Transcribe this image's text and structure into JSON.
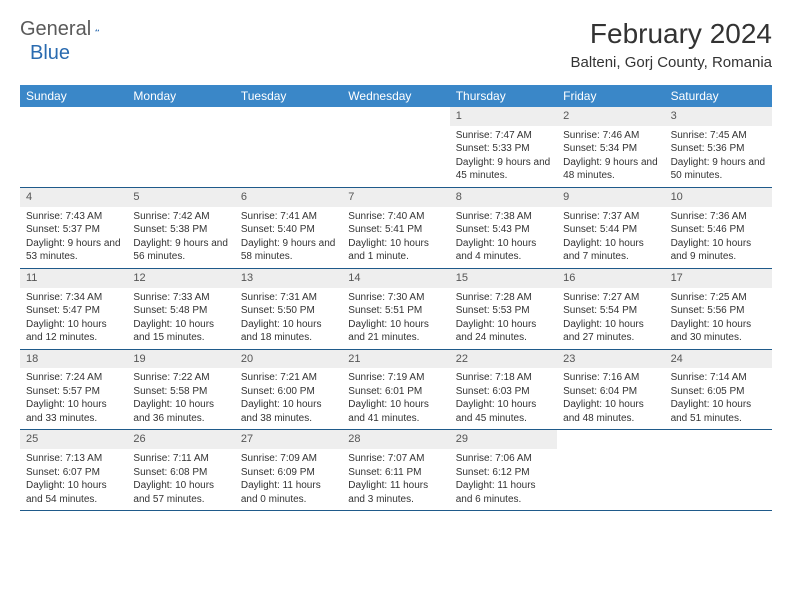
{
  "brand": {
    "name1": "General",
    "name2": "Blue"
  },
  "title": "February 2024",
  "location": "Balteni, Gorj County, Romania",
  "colors": {
    "header_bg": "#3a87c8",
    "header_text": "#ffffff",
    "row_border": "#1f5a8a",
    "daynum_bg": "#eeeeee",
    "body_text": "#333333",
    "brand_blue": "#2a6bb0"
  },
  "day_labels": [
    "Sunday",
    "Monday",
    "Tuesday",
    "Wednesday",
    "Thursday",
    "Friday",
    "Saturday"
  ],
  "weeks": [
    [
      {
        "empty": true
      },
      {
        "empty": true
      },
      {
        "empty": true
      },
      {
        "empty": true
      },
      {
        "num": "1",
        "sunrise": "7:47 AM",
        "sunset": "5:33 PM",
        "daylight": "9 hours and 45 minutes."
      },
      {
        "num": "2",
        "sunrise": "7:46 AM",
        "sunset": "5:34 PM",
        "daylight": "9 hours and 48 minutes."
      },
      {
        "num": "3",
        "sunrise": "7:45 AM",
        "sunset": "5:36 PM",
        "daylight": "9 hours and 50 minutes."
      }
    ],
    [
      {
        "num": "4",
        "sunrise": "7:43 AM",
        "sunset": "5:37 PM",
        "daylight": "9 hours and 53 minutes."
      },
      {
        "num": "5",
        "sunrise": "7:42 AM",
        "sunset": "5:38 PM",
        "daylight": "9 hours and 56 minutes."
      },
      {
        "num": "6",
        "sunrise": "7:41 AM",
        "sunset": "5:40 PM",
        "daylight": "9 hours and 58 minutes."
      },
      {
        "num": "7",
        "sunrise": "7:40 AM",
        "sunset": "5:41 PM",
        "daylight": "10 hours and 1 minute."
      },
      {
        "num": "8",
        "sunrise": "7:38 AM",
        "sunset": "5:43 PM",
        "daylight": "10 hours and 4 minutes."
      },
      {
        "num": "9",
        "sunrise": "7:37 AM",
        "sunset": "5:44 PM",
        "daylight": "10 hours and 7 minutes."
      },
      {
        "num": "10",
        "sunrise": "7:36 AM",
        "sunset": "5:46 PM",
        "daylight": "10 hours and 9 minutes."
      }
    ],
    [
      {
        "num": "11",
        "sunrise": "7:34 AM",
        "sunset": "5:47 PM",
        "daylight": "10 hours and 12 minutes."
      },
      {
        "num": "12",
        "sunrise": "7:33 AM",
        "sunset": "5:48 PM",
        "daylight": "10 hours and 15 minutes."
      },
      {
        "num": "13",
        "sunrise": "7:31 AM",
        "sunset": "5:50 PM",
        "daylight": "10 hours and 18 minutes."
      },
      {
        "num": "14",
        "sunrise": "7:30 AM",
        "sunset": "5:51 PM",
        "daylight": "10 hours and 21 minutes."
      },
      {
        "num": "15",
        "sunrise": "7:28 AM",
        "sunset": "5:53 PM",
        "daylight": "10 hours and 24 minutes."
      },
      {
        "num": "16",
        "sunrise": "7:27 AM",
        "sunset": "5:54 PM",
        "daylight": "10 hours and 27 minutes."
      },
      {
        "num": "17",
        "sunrise": "7:25 AM",
        "sunset": "5:56 PM",
        "daylight": "10 hours and 30 minutes."
      }
    ],
    [
      {
        "num": "18",
        "sunrise": "7:24 AM",
        "sunset": "5:57 PM",
        "daylight": "10 hours and 33 minutes."
      },
      {
        "num": "19",
        "sunrise": "7:22 AM",
        "sunset": "5:58 PM",
        "daylight": "10 hours and 36 minutes."
      },
      {
        "num": "20",
        "sunrise": "7:21 AM",
        "sunset": "6:00 PM",
        "daylight": "10 hours and 38 minutes."
      },
      {
        "num": "21",
        "sunrise": "7:19 AM",
        "sunset": "6:01 PM",
        "daylight": "10 hours and 41 minutes."
      },
      {
        "num": "22",
        "sunrise": "7:18 AM",
        "sunset": "6:03 PM",
        "daylight": "10 hours and 45 minutes."
      },
      {
        "num": "23",
        "sunrise": "7:16 AM",
        "sunset": "6:04 PM",
        "daylight": "10 hours and 48 minutes."
      },
      {
        "num": "24",
        "sunrise": "7:14 AM",
        "sunset": "6:05 PM",
        "daylight": "10 hours and 51 minutes."
      }
    ],
    [
      {
        "num": "25",
        "sunrise": "7:13 AM",
        "sunset": "6:07 PM",
        "daylight": "10 hours and 54 minutes."
      },
      {
        "num": "26",
        "sunrise": "7:11 AM",
        "sunset": "6:08 PM",
        "daylight": "10 hours and 57 minutes."
      },
      {
        "num": "27",
        "sunrise": "7:09 AM",
        "sunset": "6:09 PM",
        "daylight": "11 hours and 0 minutes."
      },
      {
        "num": "28",
        "sunrise": "7:07 AM",
        "sunset": "6:11 PM",
        "daylight": "11 hours and 3 minutes."
      },
      {
        "num": "29",
        "sunrise": "7:06 AM",
        "sunset": "6:12 PM",
        "daylight": "11 hours and 6 minutes."
      },
      {
        "empty": true
      },
      {
        "empty": true
      }
    ]
  ],
  "labels": {
    "sunrise": "Sunrise:",
    "sunset": "Sunset:",
    "daylight": "Daylight:"
  }
}
